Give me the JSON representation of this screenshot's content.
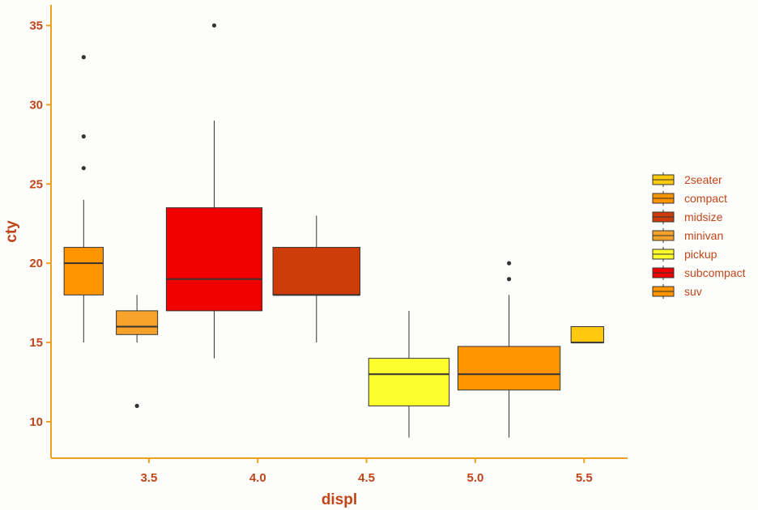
{
  "chart_data": {
    "type": "box",
    "xlabel": "displ",
    "ylabel": "cty",
    "xlim": [
      3.05,
      5.7
    ],
    "ylim": [
      7.7,
      36.3
    ],
    "x_ticks": [
      3.5,
      4.0,
      4.5,
      5.0,
      5.5
    ],
    "x_tick_labels": [
      "3.5",
      "4.0",
      "4.5",
      "5.0",
      "5.5"
    ],
    "y_ticks": [
      10,
      15,
      20,
      25,
      30,
      35
    ],
    "y_tick_labels": [
      "10",
      "15",
      "20",
      "25",
      "30",
      "35"
    ],
    "grid": false,
    "legend_position": "right",
    "colors": {
      "axis": "#f0a020",
      "text": "#c0461a",
      "background": "#fdfdfb"
    },
    "legend": [
      {
        "label": "2seater",
        "color": "#ffc90e"
      },
      {
        "label": "compact",
        "color": "#ff9500"
      },
      {
        "label": "midsize",
        "color": "#cc3d0a"
      },
      {
        "label": "minivan",
        "color": "#f7a32b"
      },
      {
        "label": "pickup",
        "color": "#fefe2e"
      },
      {
        "label": "subcompact",
        "color": "#f00000"
      },
      {
        "label": "suv",
        "color": "#ff9500"
      }
    ],
    "boxes": [
      {
        "class": "compact",
        "x_left": 3.11,
        "x_right": 3.29,
        "q1": 18,
        "median": 20,
        "q3": 21,
        "whisker_low": 15,
        "whisker_high": 24,
        "outliers": [
          26,
          28,
          33
        ],
        "color": "#ff9500"
      },
      {
        "class": "minivan",
        "x_left": 3.35,
        "x_right": 3.54,
        "q1": 15.5,
        "median": 16,
        "q3": 17,
        "whisker_low": 15,
        "whisker_high": 18,
        "outliers": [
          11
        ],
        "color": "#f7a32b"
      },
      {
        "class": "subcompact",
        "x_left": 3.58,
        "x_right": 4.02,
        "q1": 17,
        "median": 19,
        "q3": 23.5,
        "whisker_low": 14,
        "whisker_high": 29,
        "outliers": [
          35
        ],
        "color": "#f00000"
      },
      {
        "class": "midsize",
        "x_left": 4.07,
        "x_right": 4.47,
        "q1": 18,
        "median": 18,
        "q3": 21,
        "whisker_low": 15,
        "whisker_high": 23,
        "outliers": [],
        "color": "#cc3d0a"
      },
      {
        "class": "pickup",
        "x_left": 4.51,
        "x_right": 4.88,
        "q1": 11,
        "median": 13,
        "q3": 14,
        "whisker_low": 9,
        "whisker_high": 17,
        "outliers": [],
        "color": "#fefe2e"
      },
      {
        "class": "suv",
        "x_left": 4.92,
        "x_right": 5.39,
        "q1": 12,
        "median": 13,
        "q3": 14.75,
        "whisker_low": 9,
        "whisker_high": 18,
        "outliers": [
          19,
          20
        ],
        "color": "#ff9500"
      },
      {
        "class": "2seater",
        "x_left": 5.44,
        "x_right": 5.59,
        "q1": 15,
        "median": 15,
        "q3": 16,
        "whisker_low": 15,
        "whisker_high": 16,
        "outliers": [],
        "color": "#ffc90e"
      }
    ]
  }
}
